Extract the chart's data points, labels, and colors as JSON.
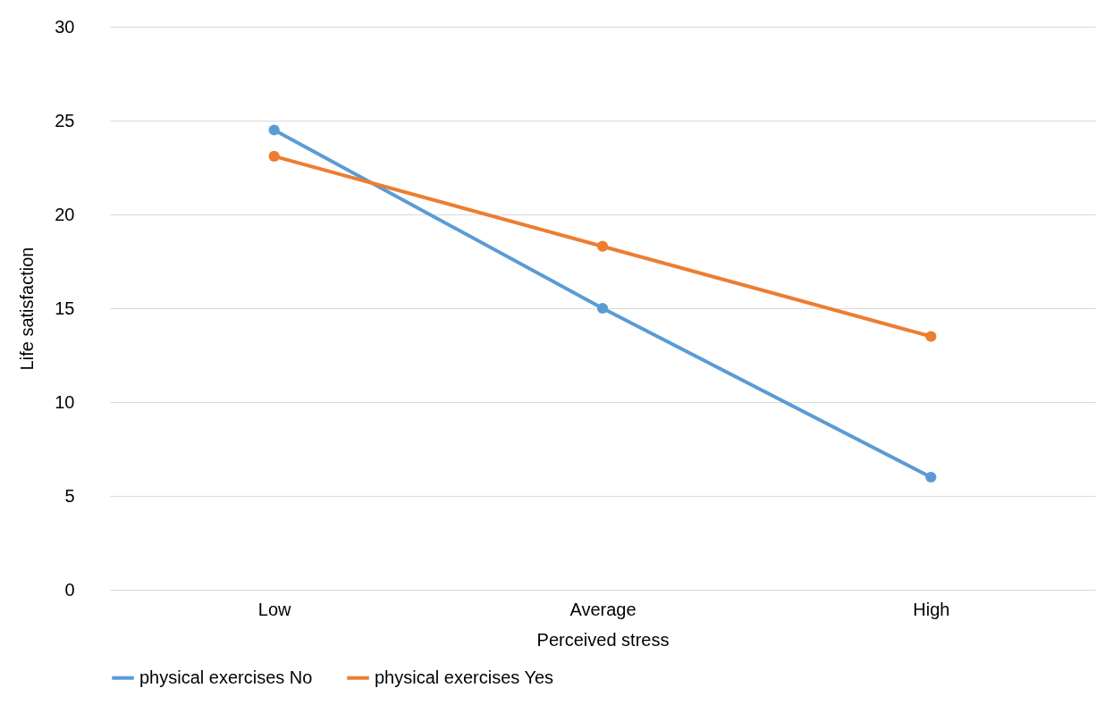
{
  "chart_data": {
    "type": "line",
    "xlabel": "Perceived stress",
    "ylabel": "Life satisfaction",
    "categories": [
      "Low",
      "Average",
      "High"
    ],
    "series": [
      {
        "name": "physical exercises No",
        "color": "#5b9bd5",
        "values": [
          24.5,
          15.0,
          6.0
        ]
      },
      {
        "name": "physical exercises Yes",
        "color": "#ed7d31",
        "values": [
          23.1,
          18.3,
          13.5
        ]
      }
    ],
    "ylim": [
      0,
      30
    ],
    "yticks": [
      0,
      5,
      10,
      15,
      20,
      25,
      30
    ],
    "grid": "y",
    "legend": "bottom",
    "marker": "circle",
    "line_style": "solid"
  }
}
